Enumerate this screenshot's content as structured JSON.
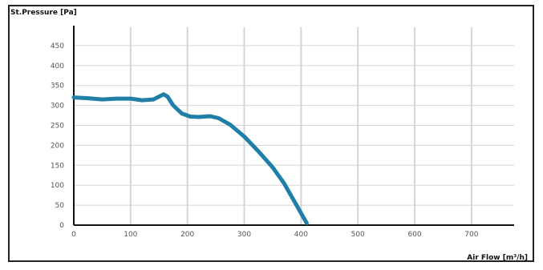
{
  "chart_data": {
    "type": "line",
    "xlabel": "Air Flow [m³/h]",
    "ylabel": "St.Pressure [Pa]",
    "xlim": [
      0,
      775
    ],
    "ylim": [
      0,
      500
    ],
    "x_ticks": [
      0,
      100,
      200,
      300,
      400,
      500,
      600,
      700
    ],
    "y_ticks": [
      0,
      50,
      100,
      150,
      200,
      250,
      300,
      350,
      400,
      450
    ],
    "grid": true,
    "colors": {
      "line": "#1f7fa6",
      "grid": "#d5d5d5",
      "axis": "#111111",
      "frame": "#222222"
    },
    "series": [
      {
        "x": [
          0,
          25,
          50,
          75,
          100,
          120,
          140,
          150,
          158,
          165,
          175,
          190,
          205,
          220,
          240,
          255,
          275,
          300,
          325,
          350,
          370,
          390,
          410
        ],
        "y": [
          320,
          318,
          315,
          317,
          317,
          313,
          315,
          322,
          328,
          322,
          300,
          280,
          272,
          271,
          273,
          268,
          252,
          222,
          185,
          145,
          105,
          55,
          5
        ]
      }
    ]
  }
}
